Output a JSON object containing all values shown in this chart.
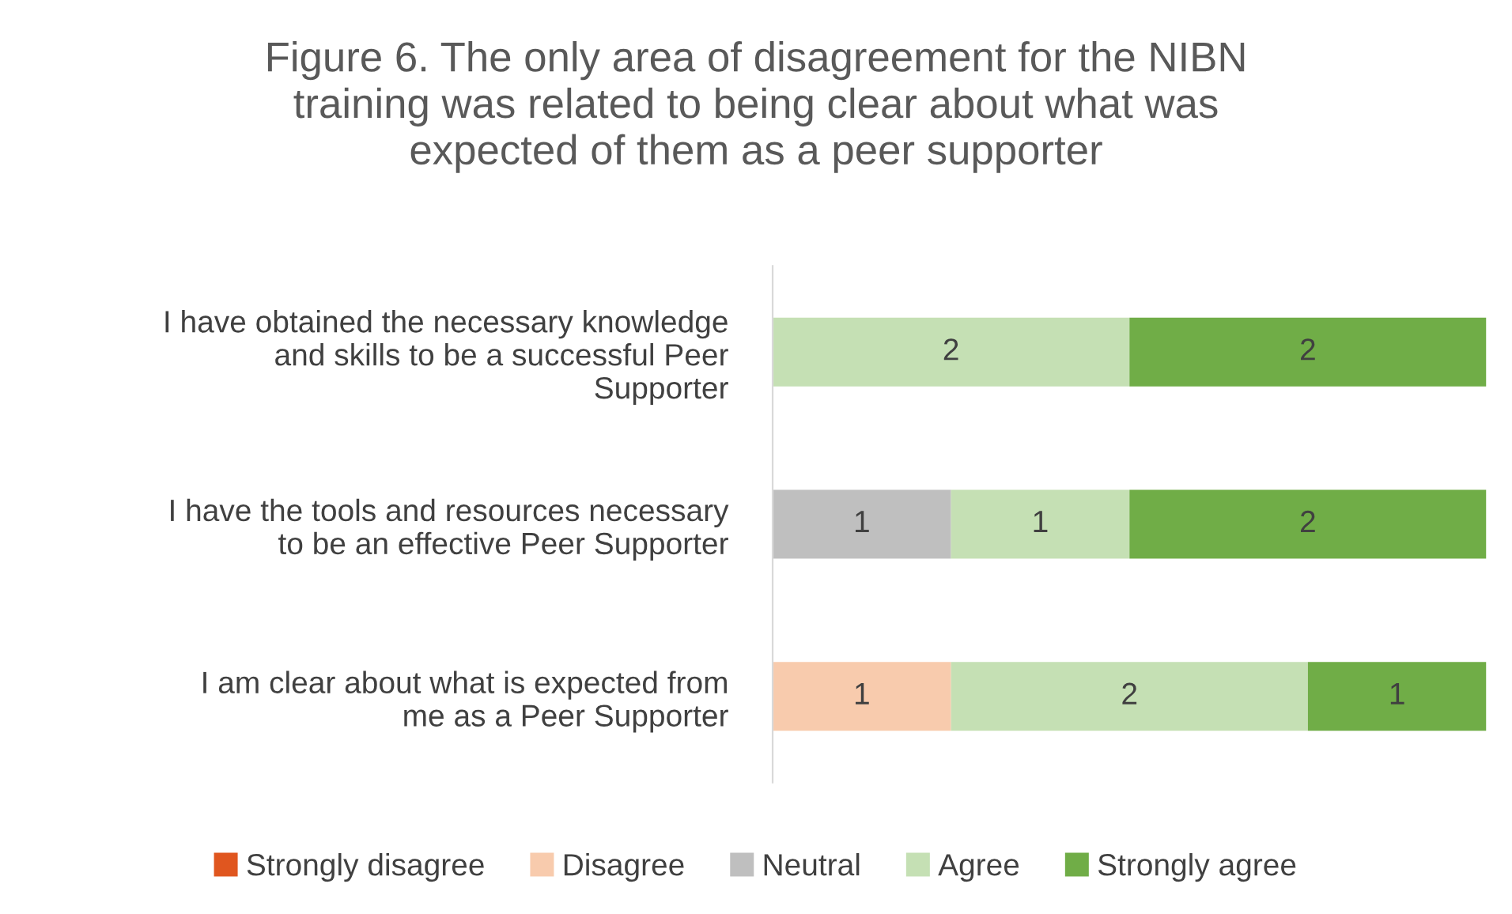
{
  "chart_data": {
    "type": "bar",
    "orientation": "horizontal",
    "stacked": true,
    "title": "Figure 6. The only area of disagreement for the NIBN\ntraining was related to being clear about what was\nexpected of them as a peer supporter",
    "categories": [
      "I have obtained the necessary knowledge\nand skills to be a successful Peer\nSupporter",
      "I have the tools and resources necessary\nto be an effective Peer Supporter",
      "I am clear about what is expected from\nme as a Peer Supporter"
    ],
    "series": [
      {
        "name": "Strongly disagree",
        "color": "#e0561f",
        "values": [
          null,
          null,
          null
        ]
      },
      {
        "name": "Disagree",
        "color": "#f8cbad",
        "values": [
          null,
          null,
          1
        ]
      },
      {
        "name": "Neutral",
        "color": "#bfbfbf",
        "values": [
          null,
          1,
          null
        ]
      },
      {
        "name": "Agree",
        "color": "#c5e0b4",
        "values": [
          2,
          1,
          2
        ]
      },
      {
        "name": "Strongly agree",
        "color": "#70ad47",
        "values": [
          2,
          2,
          1
        ]
      }
    ],
    "data_labels": true,
    "legend": "bottom",
    "grid": false,
    "tick_labels": "y"
  }
}
